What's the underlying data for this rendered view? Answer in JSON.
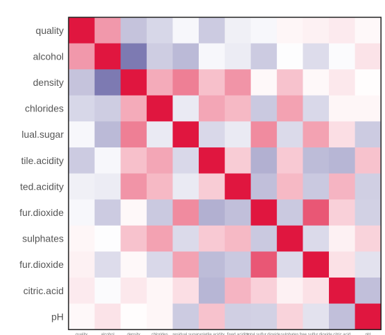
{
  "chart_data": {
    "type": "heatmap",
    "title": "",
    "xlabel": "",
    "ylabel": "",
    "colorscale": {
      "negative": "#7b78b1",
      "zero": "#ffffff",
      "positive": "#e0163f"
    },
    "zlim": [
      -0.7,
      1
    ],
    "row_labels": [
      "quality",
      "alcohol",
      "density",
      "chlorides",
      "lual.sugar",
      "tile.acidity",
      "ted.acidity",
      "fur.dioxide",
      "sulphates",
      "fur.dioxide",
      "citric.acid",
      "pH"
    ],
    "col_labels": [
      "quality",
      "alcohol",
      "density",
      "chlorides",
      "residual.sugar",
      "volatile.acidity",
      "fixed.acidity",
      "total.sulfur.dioxide",
      "sulphates",
      "free.sulfur.dioxide",
      "citric.acid",
      "pH"
    ],
    "values": [
      [
        1.0,
        0.44,
        -0.31,
        -0.21,
        -0.04,
        -0.27,
        -0.08,
        -0.04,
        0.04,
        0.06,
        0.09,
        0.03
      ],
      [
        0.44,
        1.0,
        -0.69,
        -0.26,
        -0.36,
        -0.04,
        -0.1,
        -0.27,
        -0.01,
        -0.18,
        -0.02,
        0.12
      ],
      [
        -0.31,
        -0.69,
        1.0,
        0.36,
        0.55,
        0.27,
        0.46,
        0.03,
        0.26,
        0.03,
        0.1,
        0.01
      ],
      [
        -0.21,
        -0.26,
        0.36,
        1.0,
        -0.11,
        0.38,
        0.3,
        -0.28,
        0.4,
        -0.2,
        0.04,
        0.04
      ],
      [
        -0.04,
        -0.36,
        0.55,
        -0.11,
        1.0,
        -0.2,
        -0.11,
        0.5,
        -0.19,
        0.4,
        0.14,
        -0.27
      ],
      [
        -0.27,
        -0.04,
        0.27,
        0.38,
        -0.2,
        1.0,
        0.22,
        -0.41,
        0.23,
        -0.35,
        -0.38,
        0.26
      ],
      [
        -0.08,
        -0.1,
        0.46,
        0.3,
        -0.11,
        0.22,
        1.0,
        -0.33,
        0.3,
        -0.28,
        0.32,
        -0.25
      ],
      [
        -0.04,
        -0.27,
        0.03,
        -0.28,
        0.5,
        -0.41,
        -0.33,
        1.0,
        -0.28,
        0.72,
        0.2,
        -0.24
      ],
      [
        0.04,
        -0.01,
        0.26,
        0.4,
        -0.19,
        0.23,
        0.3,
        -0.28,
        1.0,
        -0.19,
        0.06,
        0.19
      ],
      [
        0.06,
        -0.18,
        0.03,
        -0.2,
        0.4,
        -0.35,
        -0.28,
        0.72,
        -0.19,
        1.0,
        0.13,
        -0.15
      ],
      [
        0.09,
        -0.02,
        0.1,
        0.04,
        0.14,
        -0.38,
        0.32,
        0.2,
        0.06,
        0.13,
        1.0,
        -0.33
      ],
      [
        0.03,
        0.12,
        0.01,
        0.04,
        -0.27,
        0.26,
        -0.25,
        -0.24,
        0.19,
        -0.15,
        -0.33,
        1.0
      ]
    ]
  }
}
